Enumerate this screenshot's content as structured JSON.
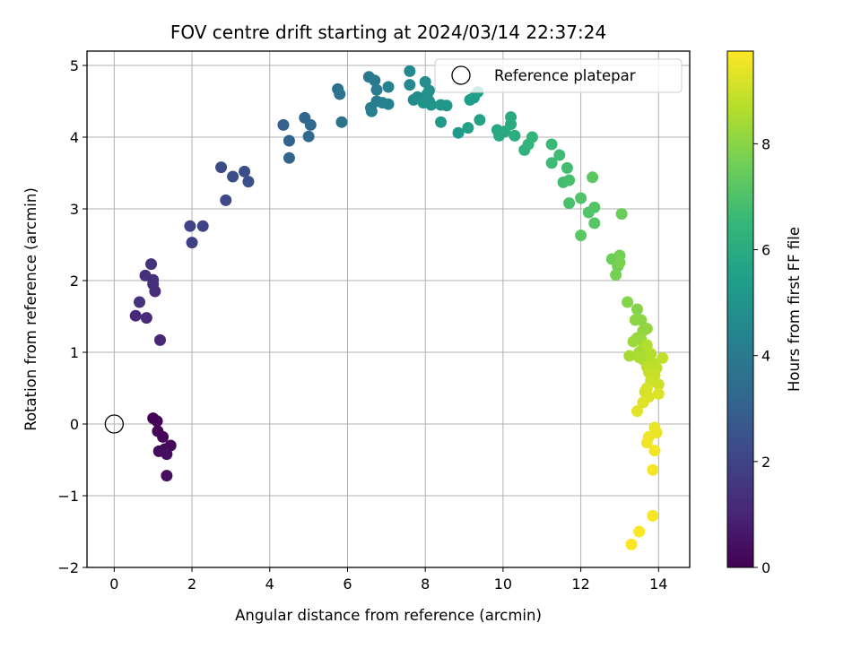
{
  "chart_data": {
    "type": "scatter",
    "title": "FOV centre drift starting at 2024/03/14 22:37:24",
    "xlabel": "Angular distance from reference (arcmin)",
    "ylabel": "Rotation from reference (arcmin)",
    "xlim": [
      -0.7,
      14.8
    ],
    "ylim": [
      -2.0,
      5.2
    ],
    "x_ticks": [
      0,
      2,
      4,
      6,
      8,
      10,
      12,
      14
    ],
    "x_tick_labels": [
      "0",
      "2",
      "4",
      "6",
      "8",
      "10",
      "12",
      "14"
    ],
    "y_ticks": [
      -2,
      -1,
      0,
      1,
      2,
      3,
      4,
      5
    ],
    "y_tick_labels": [
      "−2",
      "−1",
      "0",
      "1",
      "2",
      "3",
      "4",
      "5"
    ],
    "grid": true,
    "legend_position": "top-right",
    "reference": {
      "label": "Reference platepar",
      "x": 0,
      "y": 0
    },
    "colorbar": {
      "label": "Hours from first FF file",
      "range": [
        0,
        9.75
      ],
      "ticks": [
        0,
        2,
        4,
        6,
        8
      ],
      "tick_labels": [
        "0",
        "2",
        "4",
        "6",
        "8"
      ],
      "colormap": "viridis"
    },
    "colormap_stops": [
      "#440154",
      "#482878",
      "#3e4989",
      "#31688e",
      "#26828e",
      "#1f9e89",
      "#35b779",
      "#6ece58",
      "#b5de2b",
      "#fde725"
    ],
    "series": [
      {
        "points": [
          [
            1.0,
            0.08,
            0.0
          ],
          [
            1.1,
            0.04,
            0.05
          ],
          [
            1.12,
            -0.1,
            0.1
          ],
          [
            1.25,
            -0.18,
            0.15
          ],
          [
            1.45,
            -0.3,
            0.2
          ],
          [
            1.3,
            -0.35,
            0.25
          ],
          [
            1.15,
            -0.38,
            0.3
          ],
          [
            1.35,
            -0.42,
            0.35
          ],
          [
            1.35,
            -0.72,
            0.4
          ],
          [
            1.18,
            1.17,
            1.1
          ],
          [
            0.55,
            1.51,
            1.12
          ],
          [
            0.83,
            1.48,
            1.15
          ],
          [
            1.05,
            1.85,
            1.2
          ],
          [
            1.0,
            1.95,
            1.25
          ],
          [
            1.0,
            2.01,
            1.3
          ],
          [
            0.8,
            2.07,
            1.35
          ],
          [
            0.95,
            2.23,
            1.4
          ],
          [
            0.65,
            1.7,
            1.45
          ],
          [
            2.0,
            2.53,
            1.9
          ],
          [
            1.95,
            2.76,
            1.95
          ],
          [
            2.28,
            2.76,
            2.0
          ],
          [
            2.87,
            3.12,
            2.2
          ],
          [
            2.75,
            3.58,
            2.25
          ],
          [
            3.05,
            3.45,
            2.3
          ],
          [
            3.35,
            3.52,
            2.35
          ],
          [
            3.45,
            3.38,
            2.4
          ],
          [
            4.35,
            4.17,
            3.0
          ],
          [
            4.5,
            3.95,
            3.05
          ],
          [
            4.5,
            3.71,
            3.1
          ],
          [
            4.9,
            4.27,
            3.2
          ],
          [
            5.05,
            4.17,
            3.25
          ],
          [
            5.0,
            4.01,
            3.3
          ],
          [
            5.75,
            4.67,
            3.6
          ],
          [
            5.8,
            4.6,
            3.65
          ],
          [
            5.85,
            4.21,
            3.7
          ],
          [
            6.55,
            4.84,
            3.95
          ],
          [
            6.7,
            4.79,
            4.0
          ],
          [
            6.75,
            4.66,
            4.05
          ],
          [
            6.75,
            4.5,
            4.1
          ],
          [
            6.6,
            4.41,
            4.15
          ],
          [
            6.62,
            4.36,
            4.2
          ],
          [
            6.9,
            4.48,
            4.25
          ],
          [
            7.05,
            4.46,
            4.3
          ],
          [
            7.05,
            4.7,
            4.35
          ],
          [
            7.6,
            4.92,
            4.6
          ],
          [
            7.6,
            4.73,
            4.65
          ],
          [
            7.8,
            4.56,
            4.7
          ],
          [
            7.7,
            4.52,
            4.75
          ],
          [
            8.0,
            4.77,
            4.8
          ],
          [
            8.05,
            4.6,
            4.85
          ],
          [
            8.1,
            4.65,
            4.9
          ],
          [
            8.1,
            4.5,
            4.95
          ],
          [
            7.95,
            4.48,
            5.0
          ],
          [
            8.15,
            4.45,
            5.05
          ],
          [
            8.4,
            4.45,
            5.1
          ],
          [
            8.55,
            4.44,
            5.15
          ],
          [
            8.4,
            4.21,
            5.2
          ],
          [
            8.85,
            4.06,
            5.25
          ],
          [
            9.15,
            4.52,
            5.4
          ],
          [
            9.25,
            4.55,
            5.45
          ],
          [
            9.35,
            4.63,
            5.5
          ],
          [
            9.1,
            4.13,
            5.55
          ],
          [
            9.4,
            4.24,
            5.6
          ],
          [
            9.85,
            4.1,
            5.8
          ],
          [
            9.9,
            4.02,
            5.85
          ],
          [
            10.05,
            4.08,
            5.9
          ],
          [
            10.2,
            4.28,
            5.95
          ],
          [
            10.2,
            4.18,
            6.0
          ],
          [
            10.3,
            4.02,
            6.05
          ],
          [
            10.55,
            3.82,
            6.3
          ],
          [
            10.65,
            3.9,
            6.35
          ],
          [
            10.75,
            4.0,
            6.4
          ],
          [
            11.25,
            3.9,
            6.6
          ],
          [
            11.25,
            3.64,
            6.65
          ],
          [
            11.45,
            3.75,
            6.7
          ],
          [
            11.55,
            3.37,
            6.75
          ],
          [
            11.65,
            3.57,
            6.8
          ],
          [
            11.7,
            3.4,
            6.85
          ],
          [
            11.7,
            3.08,
            6.9
          ],
          [
            12.0,
            3.15,
            7.0
          ],
          [
            12.2,
            2.95,
            7.05
          ],
          [
            12.35,
            3.02,
            7.1
          ],
          [
            12.35,
            2.8,
            7.15
          ],
          [
            12.0,
            2.63,
            7.2
          ],
          [
            12.3,
            3.44,
            7.25
          ],
          [
            13.05,
            2.93,
            7.5
          ],
          [
            12.8,
            2.3,
            7.55
          ],
          [
            12.95,
            2.2,
            7.6
          ],
          [
            13.0,
            2.35,
            7.65
          ],
          [
            12.9,
            2.08,
            7.7
          ],
          [
            13.0,
            2.25,
            7.75
          ],
          [
            13.2,
            1.7,
            7.9
          ],
          [
            13.45,
            1.6,
            7.95
          ],
          [
            13.55,
            1.45,
            8.0
          ],
          [
            13.4,
            1.45,
            8.05
          ],
          [
            13.6,
            1.3,
            8.1
          ],
          [
            13.7,
            1.33,
            8.15
          ],
          [
            13.45,
            1.2,
            8.2
          ],
          [
            13.55,
            1.18,
            8.25
          ],
          [
            13.35,
            1.15,
            8.3
          ],
          [
            13.6,
            1.05,
            8.35
          ],
          [
            13.5,
            1.0,
            8.4
          ],
          [
            13.25,
            0.95,
            8.45
          ],
          [
            13.5,
            0.93,
            8.5
          ],
          [
            13.6,
            0.9,
            8.55
          ],
          [
            13.7,
            1.1,
            8.6
          ],
          [
            13.8,
            0.98,
            8.65
          ],
          [
            13.85,
            0.85,
            8.7
          ],
          [
            13.7,
            0.8,
            8.75
          ],
          [
            13.95,
            0.78,
            8.8
          ],
          [
            14.1,
            0.92,
            8.85
          ],
          [
            13.75,
            0.72,
            8.9
          ],
          [
            13.9,
            0.68,
            8.95
          ],
          [
            13.8,
            0.6,
            9.0
          ],
          [
            14.0,
            0.55,
            9.05
          ],
          [
            13.65,
            0.45,
            9.1
          ],
          [
            13.7,
            0.5,
            9.15
          ],
          [
            13.75,
            0.38,
            9.2
          ],
          [
            14.0,
            0.42,
            9.25
          ],
          [
            13.6,
            0.3,
            9.3
          ],
          [
            13.45,
            0.18,
            9.35
          ],
          [
            13.9,
            -0.05,
            9.45
          ],
          [
            13.95,
            -0.12,
            9.5
          ],
          [
            13.75,
            -0.18,
            9.52
          ],
          [
            13.7,
            -0.26,
            9.55
          ],
          [
            13.9,
            -0.37,
            9.58
          ],
          [
            13.85,
            -0.64,
            9.62
          ],
          [
            13.85,
            -1.28,
            9.66
          ],
          [
            13.5,
            -1.5,
            9.7
          ],
          [
            13.3,
            -1.68,
            9.75
          ]
        ]
      }
    ]
  }
}
